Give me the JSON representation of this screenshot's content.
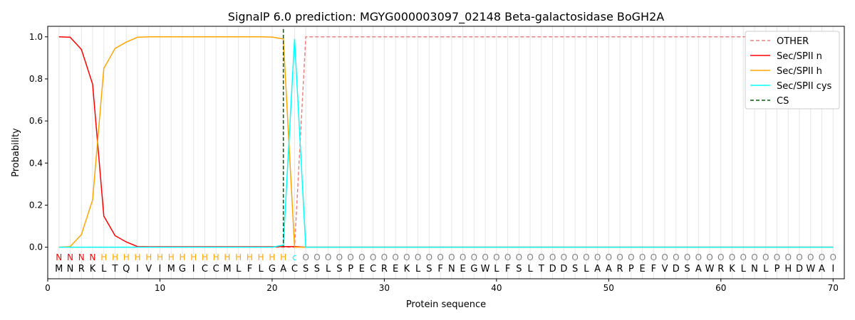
{
  "chart_data": {
    "type": "line",
    "title": "SignalP 6.0 prediction: MGYG000003097_02148 Beta-galactosidase BoGH2A",
    "xlabel": "Protein sequence",
    "ylabel": "Probability",
    "xlim": [
      0,
      71
    ],
    "ylim": [
      -0.15,
      1.05
    ],
    "xticks": [
      0,
      10,
      20,
      30,
      40,
      50,
      60,
      70
    ],
    "yticks": [
      "0.0",
      "0.2",
      "0.4",
      "0.6",
      "0.8",
      "1.0"
    ],
    "sequence": "MNRKLTQIVIMGICCMLFLGACSSLSPECREKLSFNEGWLFSLTDDSLAARPEFVDSAWRKLNLPHDWAI",
    "labels": "NNNNHHHHHHHHHHHHHHHHHcOOOOOOOOOOOOOOOOOOOOOOOOOOOOOOOOOOOOOOOOOOOOOOOO",
    "label_colors": {
      "N": "#ff0000",
      "H": "#ffa500",
      "c": "#00ffff",
      "O": "#808080"
    },
    "cs_position": 21,
    "legend_position": "top-right",
    "series": [
      {
        "name": "OTHER",
        "color": "#f08080",
        "dash": true,
        "values": {
          "start": [
            0,
            0,
            0,
            0,
            0,
            0,
            0,
            0,
            0,
            0,
            0,
            0,
            0,
            0,
            0,
            0,
            0,
            0,
            0,
            0,
            0,
            0.0,
            1.0
          ],
          "rest": 1.0
        }
      },
      {
        "name": "Sec/SPII n",
        "color": "#ff0000",
        "dash": false,
        "values": {
          "start": [
            1.0,
            0.998,
            0.94,
            0.775,
            0.148,
            0.055,
            0.025,
            0.003,
            0.002,
            0.002,
            0.002,
            0.002,
            0.002,
            0.002,
            0.002,
            0.002,
            0.002,
            0.002,
            0.002,
            0.002,
            0.003,
            0.003,
            0.0
          ],
          "rest": 0
        }
      },
      {
        "name": "Sec/SPII h",
        "color": "#ffa500",
        "dash": false,
        "values": {
          "start": [
            0,
            0.003,
            0.06,
            0.225,
            0.85,
            0.945,
            0.975,
            0.998,
            1.0,
            1.0,
            1.0,
            1.0,
            1.0,
            1.0,
            1.0,
            1.0,
            1.0,
            1.0,
            1.0,
            0.999,
            0.99,
            0.0,
            0.0
          ],
          "rest": 0
        }
      },
      {
        "name": "Sec/SPII cys",
        "color": "#00ffff",
        "dash": false,
        "values": {
          "start": [
            0,
            0,
            0,
            0,
            0,
            0,
            0,
            0,
            0,
            0,
            0,
            0,
            0,
            0,
            0,
            0,
            0,
            0,
            0,
            0,
            0.01,
            0.99,
            0.0
          ],
          "rest": 0
        }
      }
    ],
    "cs_legend": {
      "name": "CS",
      "color": "#006400"
    }
  }
}
